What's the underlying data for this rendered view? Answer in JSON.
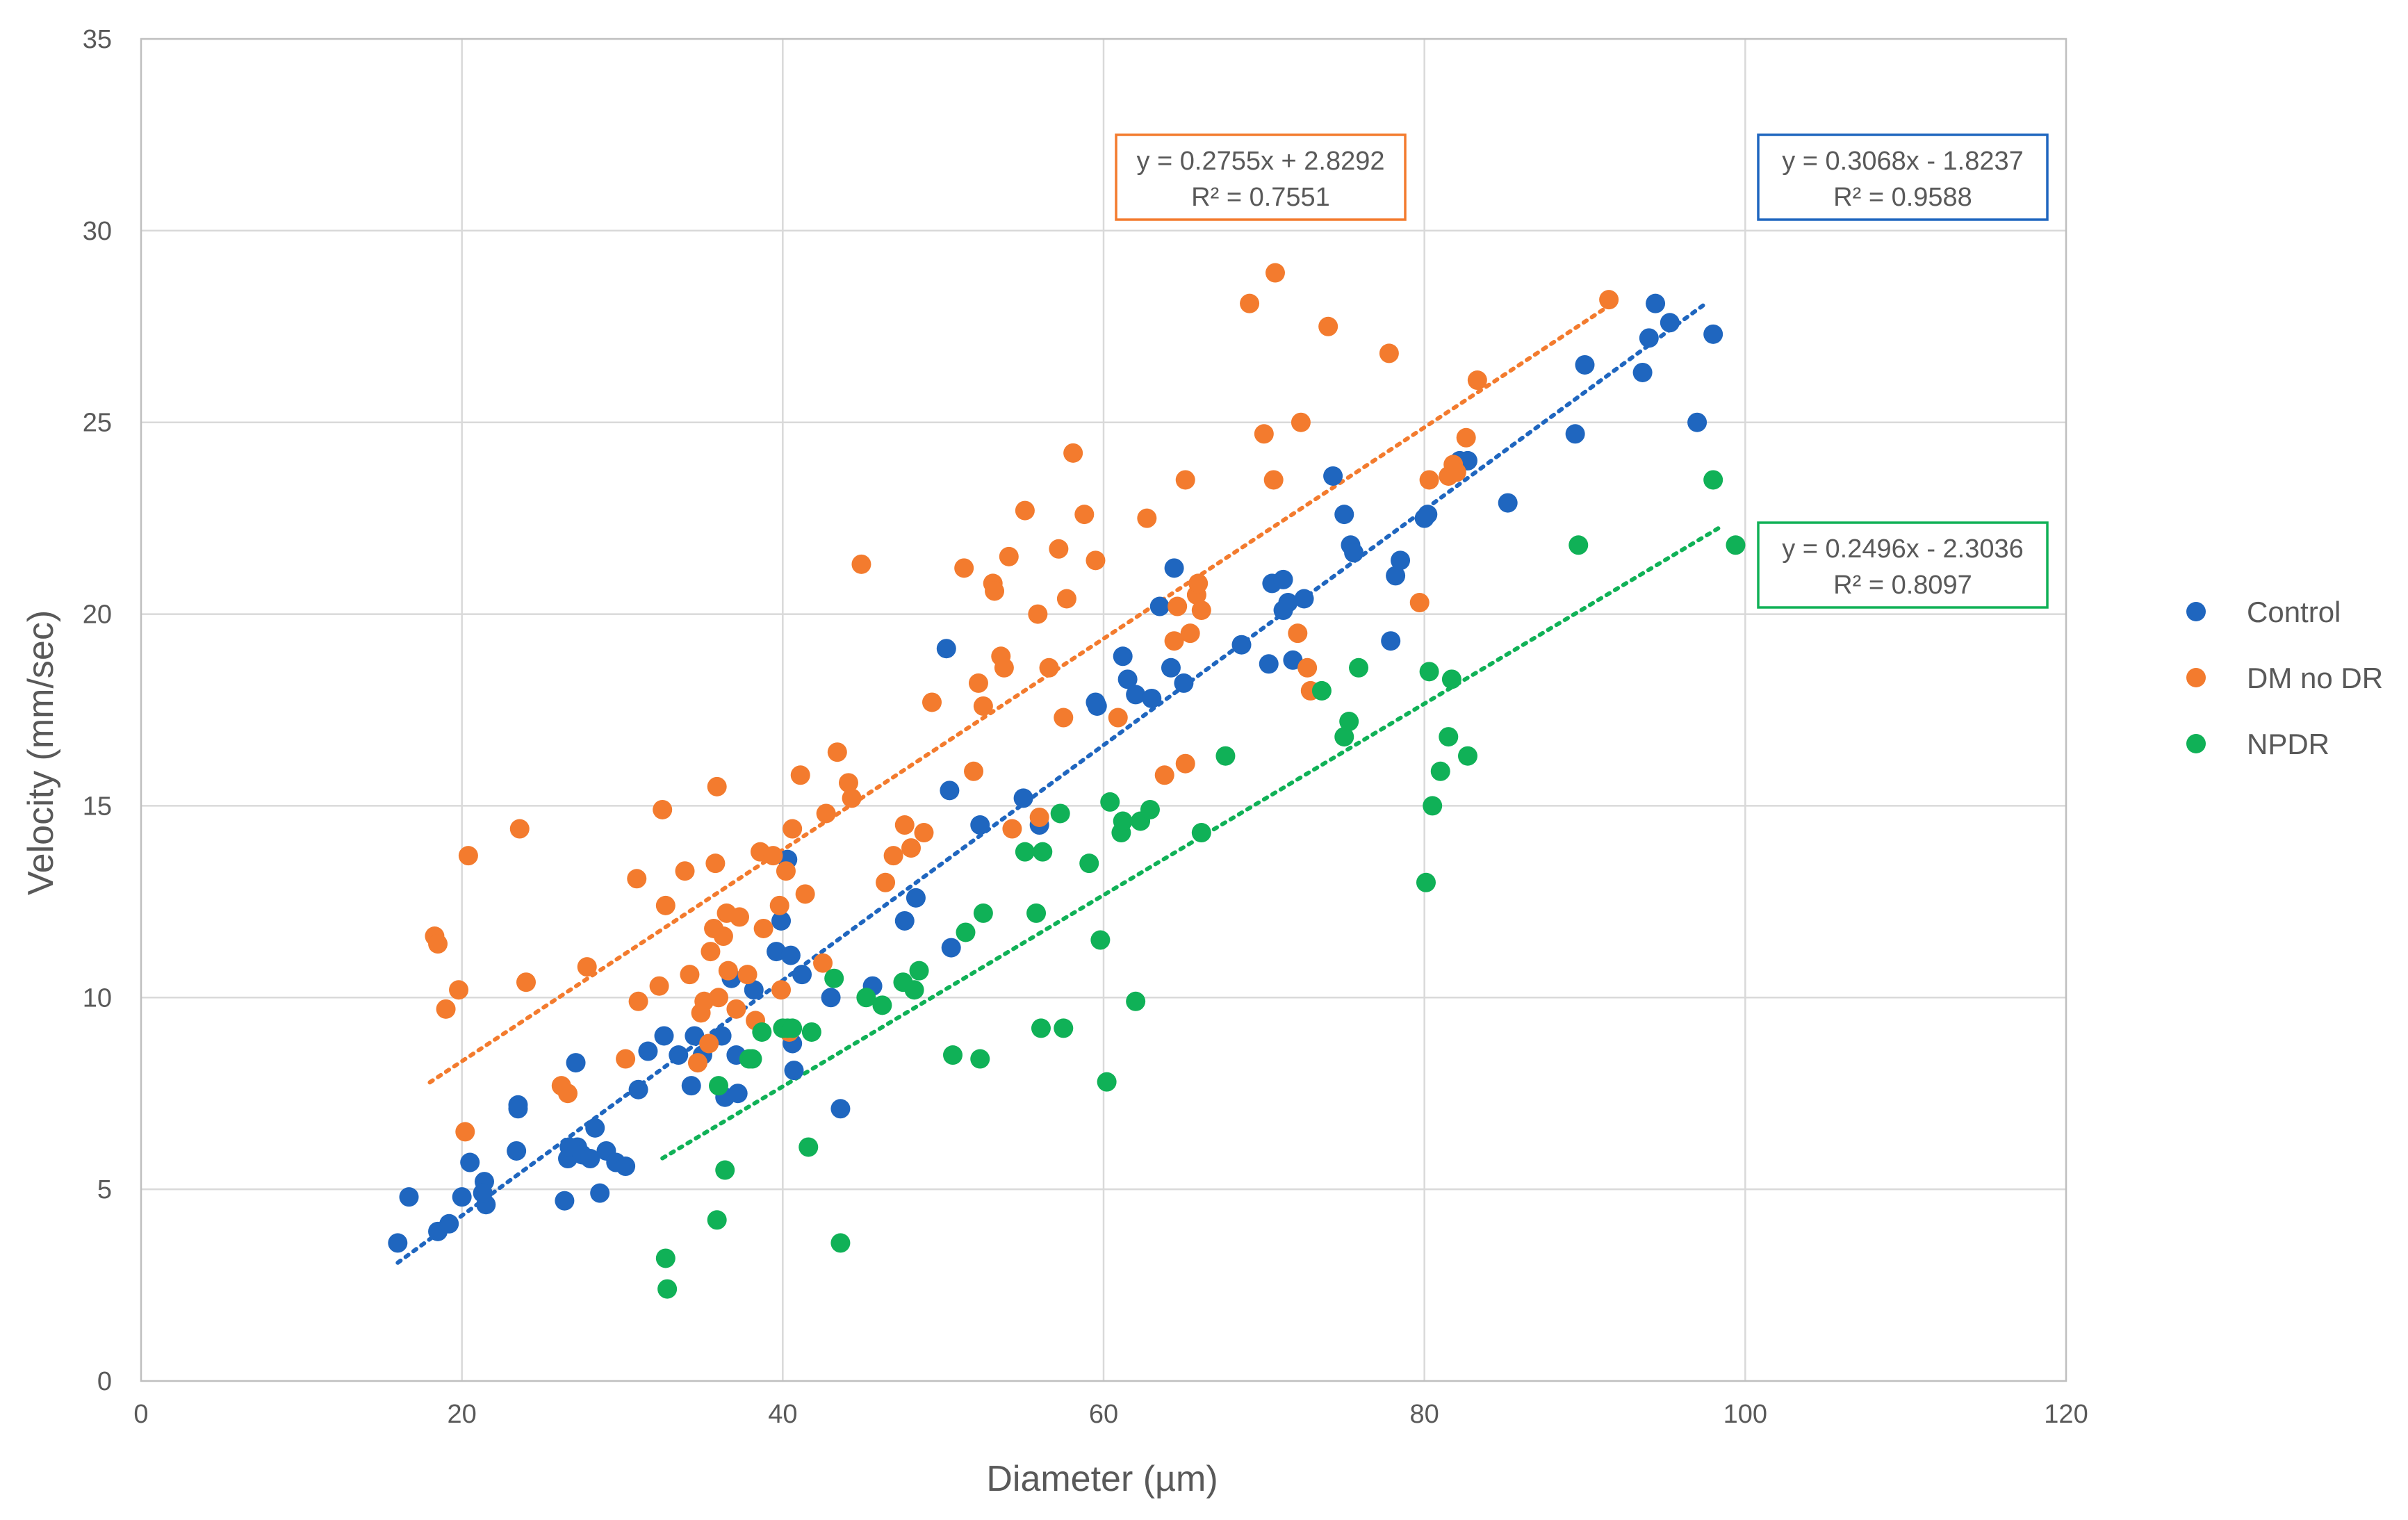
{
  "chart_data": {
    "type": "scatter",
    "title": "",
    "xlabel": "Diameter (µm)",
    "ylabel": "Velocity (mm/sec)",
    "xlim": [
      0,
      120
    ],
    "ylim": [
      0,
      35
    ],
    "x_ticks": [
      0,
      20,
      40,
      60,
      80,
      100,
      120
    ],
    "y_ticks": [
      0,
      5,
      10,
      15,
      20,
      25,
      30,
      35
    ],
    "grid": true,
    "legend_position": "right",
    "series": [
      {
        "name": "Control",
        "color": "#1f66bf",
        "trendline": {
          "equation": "y = 0.3068x - 1.8237",
          "r2": "R² = 0.9588",
          "slope": 0.3068,
          "intercept": -1.8237,
          "x_range": [
            16,
            97.5
          ]
        },
        "points": [
          [
            16,
            3.6
          ],
          [
            16.7,
            4.8
          ],
          [
            18.5,
            3.9
          ],
          [
            19.2,
            4.1
          ],
          [
            20,
            4.8
          ],
          [
            20.5,
            5.7
          ],
          [
            21.4,
            5.2
          ],
          [
            21.5,
            4.6
          ],
          [
            21.3,
            4.9
          ],
          [
            23.4,
            6
          ],
          [
            23.5,
            7.2
          ],
          [
            23.5,
            7.1
          ],
          [
            26.4,
            4.7
          ],
          [
            26.6,
            5.8
          ],
          [
            26.7,
            6.1
          ],
          [
            27.1,
            8.3
          ],
          [
            27.2,
            6.1
          ],
          [
            27.5,
            5.9
          ],
          [
            28,
            5.8
          ],
          [
            28.3,
            6.6
          ],
          [
            28.6,
            4.9
          ],
          [
            29,
            6
          ],
          [
            29.6,
            5.7
          ],
          [
            30.2,
            5.6
          ],
          [
            31,
            7.6
          ],
          [
            31.6,
            8.6
          ],
          [
            32.6,
            9
          ],
          [
            33.5,
            8.5
          ],
          [
            34.3,
            7.7
          ],
          [
            34.5,
            9
          ],
          [
            35,
            8.5
          ],
          [
            36.2,
            9
          ],
          [
            36.4,
            7.4
          ],
          [
            36.8,
            10.5
          ],
          [
            37.1,
            8.5
          ],
          [
            37.2,
            7.5
          ],
          [
            38.2,
            10.2
          ],
          [
            39.6,
            11.2
          ],
          [
            39.9,
            12
          ],
          [
            40.3,
            13.6
          ],
          [
            40.5,
            11.1
          ],
          [
            40.6,
            8.8
          ],
          [
            40.7,
            8.1
          ],
          [
            41.2,
            10.6
          ],
          [
            43,
            10
          ],
          [
            43.6,
            7.1
          ],
          [
            45.6,
            10.3
          ],
          [
            47.6,
            12
          ],
          [
            48.3,
            12.6
          ],
          [
            50.2,
            19.1
          ],
          [
            50.4,
            15.4
          ],
          [
            50.5,
            11.3
          ],
          [
            52.3,
            14.5
          ],
          [
            55,
            15.2
          ],
          [
            56,
            14.5
          ],
          [
            59.5,
            17.7
          ],
          [
            59.6,
            17.6
          ],
          [
            61.2,
            18.9
          ],
          [
            61.5,
            18.3
          ],
          [
            62,
            17.9
          ],
          [
            63,
            17.8
          ],
          [
            63.5,
            20.2
          ],
          [
            64.2,
            18.6
          ],
          [
            64.4,
            21.2
          ],
          [
            65,
            18.2
          ],
          [
            68.6,
            19.2
          ],
          [
            70.3,
            18.7
          ],
          [
            70.5,
            20.8
          ],
          [
            71.2,
            20.9
          ],
          [
            71.2,
            20.1
          ],
          [
            71.5,
            20.3
          ],
          [
            71.8,
            18.8
          ],
          [
            72.5,
            20.4
          ],
          [
            74.3,
            23.6
          ],
          [
            75,
            22.6
          ],
          [
            75.4,
            21.8
          ],
          [
            75.6,
            21.6
          ],
          [
            77.9,
            19.3
          ],
          [
            78.2,
            21
          ],
          [
            78.5,
            21.4
          ],
          [
            80,
            22.5
          ],
          [
            80.2,
            22.6
          ],
          [
            82.2,
            24
          ],
          [
            82.7,
            24
          ],
          [
            85.2,
            22.9
          ],
          [
            89.4,
            24.7
          ],
          [
            90,
            26.5
          ],
          [
            93.6,
            26.3
          ],
          [
            94,
            27.2
          ],
          [
            94.4,
            28.1
          ],
          [
            95.3,
            27.6
          ],
          [
            97,
            25
          ],
          [
            98,
            27.3
          ]
        ]
      },
      {
        "name": "DM no DR",
        "color": "#f37b2e",
        "trendline": {
          "equation": "y = 0.2755x + 2.8292",
          "r2": "R² = 0.7551",
          "slope": 0.2755,
          "intercept": 2.8292,
          "x_range": [
            18,
            91.5
          ]
        },
        "points": [
          [
            18.3,
            11.6
          ],
          [
            18.5,
            11.4
          ],
          [
            19,
            9.7
          ],
          [
            19.8,
            10.2
          ],
          [
            20.2,
            6.5
          ],
          [
            20.4,
            13.7
          ],
          [
            23.6,
            14.4
          ],
          [
            24,
            10.4
          ],
          [
            26.2,
            7.7
          ],
          [
            26.6,
            7.5
          ],
          [
            27.8,
            10.8
          ],
          [
            30.2,
            8.4
          ],
          [
            30.9,
            13.1
          ],
          [
            31,
            9.9
          ],
          [
            32.3,
            10.3
          ],
          [
            32.5,
            14.9
          ],
          [
            32.7,
            12.4
          ],
          [
            33.9,
            13.3
          ],
          [
            34.2,
            10.6
          ],
          [
            34.7,
            8.3
          ],
          [
            34.9,
            9.6
          ],
          [
            35.1,
            9.9
          ],
          [
            35.4,
            8.8
          ],
          [
            35.5,
            11.2
          ],
          [
            35.7,
            11.8
          ],
          [
            35.8,
            13.5
          ],
          [
            35.9,
            15.5
          ],
          [
            36,
            10
          ],
          [
            36.3,
            11.6
          ],
          [
            36.5,
            12.2
          ],
          [
            36.6,
            10.7
          ],
          [
            37.1,
            9.7
          ],
          [
            37.3,
            12.1
          ],
          [
            37.8,
            10.6
          ],
          [
            38.3,
            9.4
          ],
          [
            38.6,
            13.8
          ],
          [
            38.8,
            11.8
          ],
          [
            39.4,
            13.7
          ],
          [
            39.8,
            12.4
          ],
          [
            39.9,
            10.2
          ],
          [
            40.2,
            13.3
          ],
          [
            40.4,
            9.1
          ],
          [
            40.6,
            14.4
          ],
          [
            41.1,
            15.8
          ],
          [
            41.4,
            12.7
          ],
          [
            42.5,
            10.9
          ],
          [
            42.7,
            14.8
          ],
          [
            43.4,
            16.4
          ],
          [
            44.1,
            15.6
          ],
          [
            44.3,
            15.2
          ],
          [
            44.9,
            21.3
          ],
          [
            46.4,
            13
          ],
          [
            46.9,
            13.7
          ],
          [
            47.6,
            14.5
          ],
          [
            48,
            13.9
          ],
          [
            48.8,
            14.3
          ],
          [
            49.3,
            17.7
          ],
          [
            51.3,
            21.2
          ],
          [
            51.9,
            15.9
          ],
          [
            52.2,
            18.2
          ],
          [
            52.5,
            17.6
          ],
          [
            53.1,
            20.8
          ],
          [
            53.2,
            20.6
          ],
          [
            53.6,
            18.9
          ],
          [
            53.8,
            18.6
          ],
          [
            54.1,
            21.5
          ],
          [
            54.3,
            14.4
          ],
          [
            55.1,
            22.7
          ],
          [
            55.9,
            20
          ],
          [
            56,
            14.7
          ],
          [
            56.6,
            18.6
          ],
          [
            57.2,
            21.7
          ],
          [
            57.5,
            17.3
          ],
          [
            57.7,
            20.4
          ],
          [
            58.1,
            24.2
          ],
          [
            58.8,
            22.6
          ],
          [
            59.5,
            21.4
          ],
          [
            60.9,
            17.3
          ],
          [
            62.7,
            22.5
          ],
          [
            63.8,
            15.8
          ],
          [
            64.4,
            19.3
          ],
          [
            64.6,
            20.2
          ],
          [
            65.1,
            23.5
          ],
          [
            65.1,
            16.1
          ],
          [
            65.4,
            19.5
          ],
          [
            65.8,
            20.5
          ],
          [
            65.9,
            20.8
          ],
          [
            66.1,
            20.1
          ],
          [
            69.1,
            28.1
          ],
          [
            70,
            24.7
          ],
          [
            70.6,
            23.5
          ],
          [
            70.7,
            28.9
          ],
          [
            72.1,
            19.5
          ],
          [
            72.3,
            25
          ],
          [
            72.7,
            18.6
          ],
          [
            72.9,
            18
          ],
          [
            74,
            27.5
          ],
          [
            77.8,
            26.8
          ],
          [
            79.7,
            20.3
          ],
          [
            80.3,
            23.5
          ],
          [
            81.5,
            23.6
          ],
          [
            81.8,
            23.9
          ],
          [
            82,
            23.7
          ],
          [
            82.6,
            24.6
          ],
          [
            83.3,
            26.1
          ],
          [
            91.5,
            28.2
          ]
        ]
      },
      {
        "name": "NPDR",
        "color": "#10b157",
        "trendline": {
          "equation": "y = 0.2496x - 2.3036",
          "r2": "R² = 0.8097",
          "slope": 0.2496,
          "intercept": -2.3036,
          "x_range": [
            32.5,
            98.5
          ]
        },
        "points": [
          [
            32.7,
            3.2
          ],
          [
            32.8,
            2.4
          ],
          [
            35.9,
            4.2
          ],
          [
            36,
            7.7
          ],
          [
            36.4,
            5.5
          ],
          [
            37.9,
            8.4
          ],
          [
            38.1,
            8.4
          ],
          [
            38.7,
            9.1
          ],
          [
            40,
            9.2
          ],
          [
            40.3,
            9.2
          ],
          [
            40.6,
            9.2
          ],
          [
            41.6,
            6.1
          ],
          [
            41.8,
            9.1
          ],
          [
            43.2,
            10.5
          ],
          [
            43.6,
            3.6
          ],
          [
            45.2,
            10
          ],
          [
            46.2,
            9.8
          ],
          [
            47.5,
            10.4
          ],
          [
            48.2,
            10.2
          ],
          [
            48.5,
            10.7
          ],
          [
            50.6,
            8.5
          ],
          [
            51.4,
            11.7
          ],
          [
            52.3,
            8.4
          ],
          [
            52.5,
            12.2
          ],
          [
            55.1,
            13.8
          ],
          [
            55.8,
            12.2
          ],
          [
            56.1,
            9.2
          ],
          [
            56.2,
            13.8
          ],
          [
            57.3,
            14.8
          ],
          [
            57.5,
            9.2
          ],
          [
            59.1,
            13.5
          ],
          [
            59.8,
            11.5
          ],
          [
            60.2,
            7.8
          ],
          [
            60.4,
            15.1
          ],
          [
            61.1,
            14.3
          ],
          [
            61.2,
            14.6
          ],
          [
            62,
            9.9
          ],
          [
            62.3,
            14.6
          ],
          [
            62.9,
            14.9
          ],
          [
            66.1,
            14.3
          ],
          [
            67.6,
            16.3
          ],
          [
            73.6,
            18
          ],
          [
            75,
            16.8
          ],
          [
            75.3,
            17.2
          ],
          [
            75.9,
            18.6
          ],
          [
            80.1,
            13
          ],
          [
            80.3,
            18.5
          ],
          [
            80.5,
            15
          ],
          [
            81,
            15.9
          ],
          [
            81.5,
            16.8
          ],
          [
            81.7,
            18.3
          ],
          [
            82.7,
            16.3
          ],
          [
            89.6,
            21.8
          ],
          [
            98,
            23.5
          ],
          [
            99.4,
            21.8
          ]
        ]
      }
    ]
  }
}
